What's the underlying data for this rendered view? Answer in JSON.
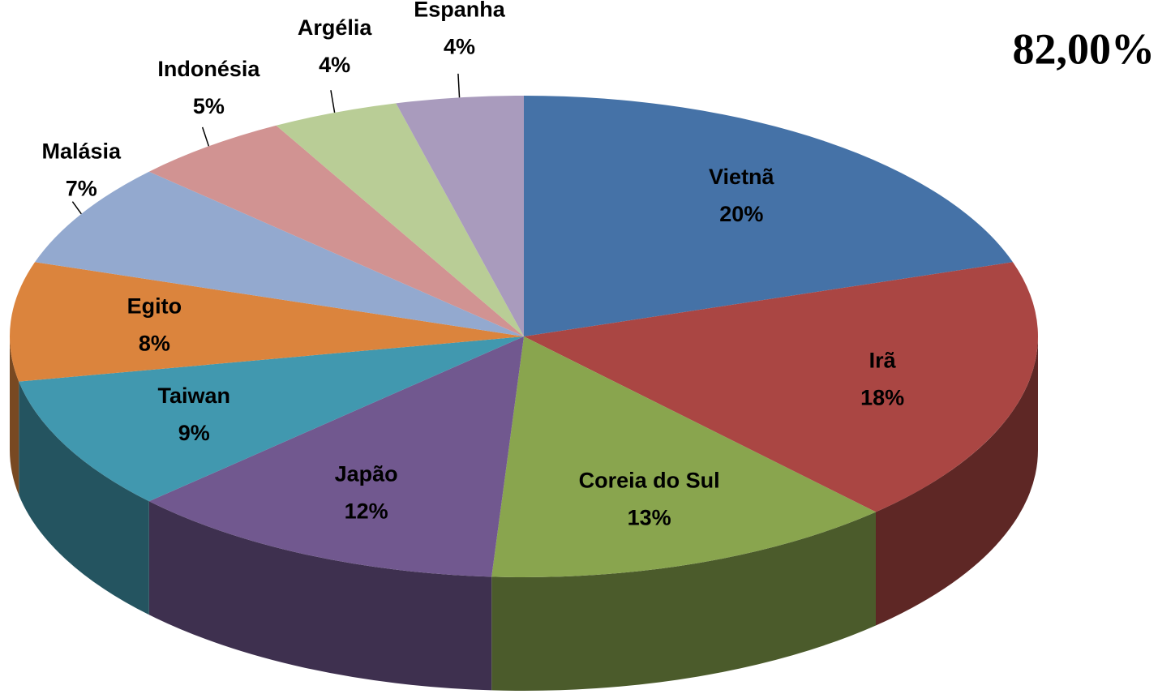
{
  "chart_data": {
    "type": "pie3d",
    "annotation": "82,00%",
    "categories": [
      "Vietnã",
      "Irã",
      "Coreia do Sul",
      "Japão",
      "Taiwan",
      "Egito",
      "Malásia",
      "Indonésia",
      "Argélia",
      "Espanha"
    ],
    "values": [
      20,
      18,
      13,
      12,
      9,
      8,
      7,
      5,
      4,
      4
    ],
    "value_labels": [
      "20%",
      "18%",
      "13%",
      "12%",
      "9%",
      "8%",
      "7%",
      "5%",
      "4%",
      "4%"
    ],
    "colors": [
      "#4572a7",
      "#aa4643",
      "#89a54e",
      "#71588f",
      "#4198af",
      "#db843d",
      "#93a9cf",
      "#d19392",
      "#b9cd96",
      "#a99bbd"
    ]
  }
}
